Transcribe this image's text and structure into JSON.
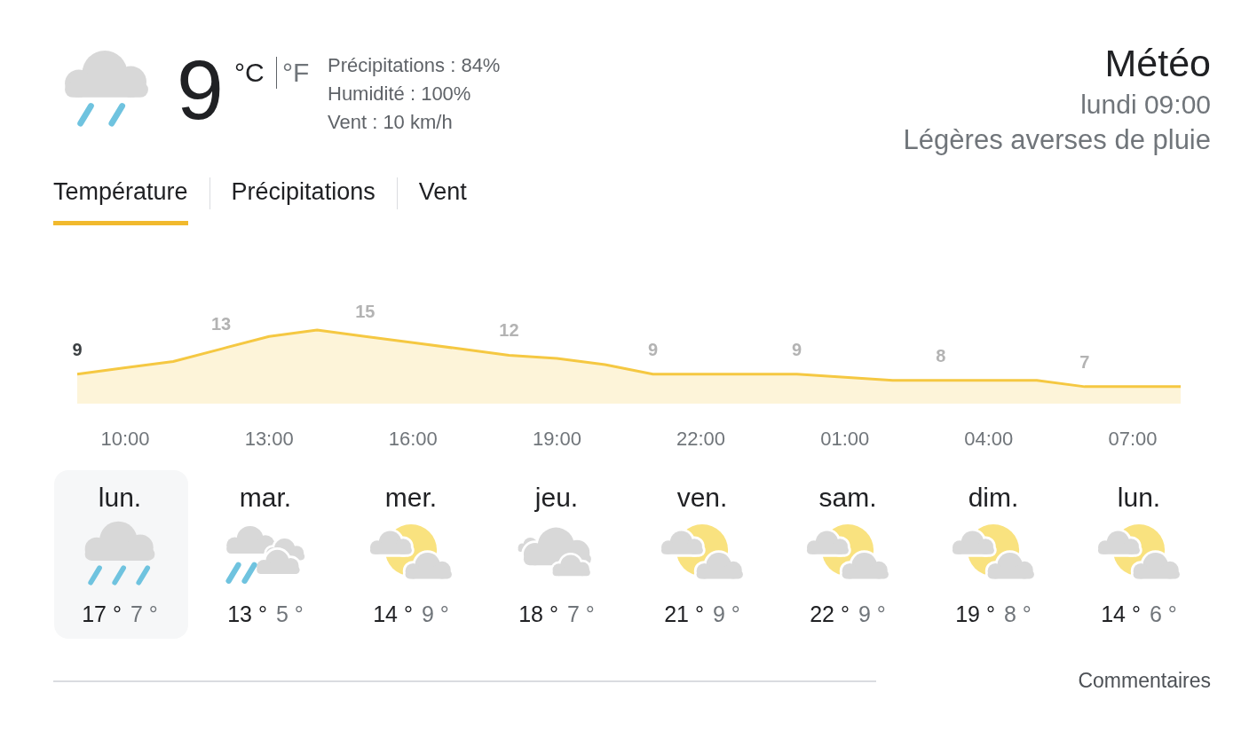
{
  "chart_data": [
    {
      "type": "other",
      "title": "Météo",
      "subtitle": "lundi 09:00",
      "annotations": [
        "9",
        "°C",
        "°F",
        "Précipitations : 84%",
        "Humidité : 100%",
        "Vent : 10 km/h",
        "Légères averses de pluie",
        "Température",
        "Précipitations",
        "Vent"
      ]
    },
    {
      "type": "area",
      "categories": [
        null,
        "10:00",
        null,
        null,
        "13:00",
        null,
        null,
        "16:00",
        null,
        null,
        "19:00",
        null,
        null,
        "22:00",
        null,
        null,
        "01:00",
        null,
        null,
        "04:00",
        null,
        null,
        "07:00",
        null
      ],
      "tick_labels": "x",
      "series": [
        {
          "color": "#f5c842",
          "values": [
            9,
            10,
            11,
            13,
            15,
            16,
            15,
            14,
            13,
            12,
            11.5,
            10.5,
            9,
            9,
            9,
            9,
            8.5,
            8,
            8,
            8,
            8,
            7,
            7,
            7
          ],
          "value_labels": [
            "9",
            null,
            null,
            "13",
            null,
            null,
            "15",
            null,
            null,
            "12",
            null,
            null,
            "9",
            null,
            null,
            "9",
            null,
            null,
            "8",
            null,
            null,
            "7",
            null,
            null
          ]
        }
      ]
    },
    {
      "type": "other",
      "annotations": [
        "lun.",
        "17 °",
        "7 °",
        "mar.",
        "13 °",
        "5 °",
        "mer.",
        "14 °",
        "9 °",
        "jeu.",
        "18 °",
        "7 °",
        "ven.",
        "21 °",
        "9 °",
        "sam.",
        "22 °",
        "9 °",
        "dim.",
        "19 °",
        "8 °",
        "lun.",
        "14 °",
        "6 °",
        "Commentaires"
      ]
    }
  ]
}
